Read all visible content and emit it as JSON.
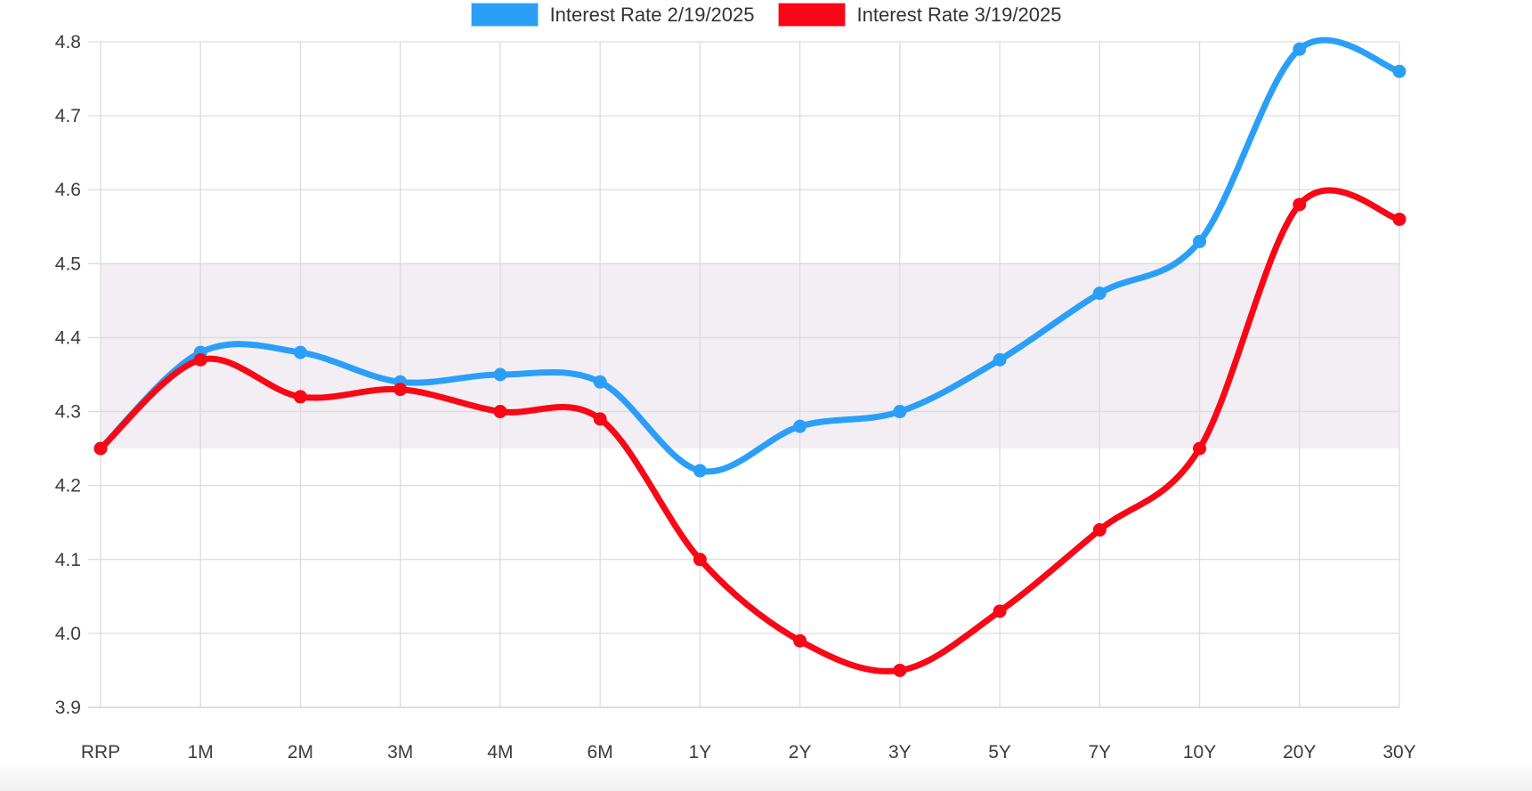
{
  "legend": {
    "items": [
      {
        "label": "Interest Rate 2/19/2025",
        "color": "#2B9FF8"
      },
      {
        "label": "Interest Rate 3/19/2025",
        "color": "#F90716"
      }
    ]
  },
  "chart_data": {
    "type": "line",
    "title": "",
    "xlabel": "",
    "ylabel": "",
    "categories": [
      "RRP",
      "1M",
      "2M",
      "3M",
      "4M",
      "6M",
      "1Y",
      "2Y",
      "3Y",
      "5Y",
      "7Y",
      "10Y",
      "20Y",
      "30Y"
    ],
    "series": [
      {
        "name": "Interest Rate 2/19/2025",
        "color": "#2B9FF8",
        "values": [
          4.25,
          4.38,
          4.38,
          4.34,
          4.35,
          4.34,
          4.22,
          4.28,
          4.3,
          4.37,
          4.46,
          4.53,
          4.79,
          4.76
        ]
      },
      {
        "name": "Interest Rate 3/19/2025",
        "color": "#F90716",
        "values": [
          4.25,
          4.37,
          4.32,
          4.33,
          4.3,
          4.29,
          4.1,
          3.99,
          3.95,
          4.03,
          4.14,
          4.25,
          4.58,
          4.56
        ]
      }
    ],
    "ylim": [
      3.9,
      4.8
    ],
    "ytick_step": 0.1,
    "y_tick_labels": [
      "3.9",
      "4.0",
      "4.1",
      "4.2",
      "4.3",
      "4.4",
      "4.5",
      "4.6",
      "4.7",
      "4.8"
    ],
    "grid": true,
    "legend_position": "top",
    "highlight_band": {
      "from": 4.25,
      "to": 4.5,
      "color": "#F2EEF3"
    },
    "line_smoothing": "cubic",
    "colors": {
      "grid_line": "#DCDCDC",
      "axis_bottom_line": "#C9C9C9",
      "tick_label": "#3C3C3C"
    }
  }
}
